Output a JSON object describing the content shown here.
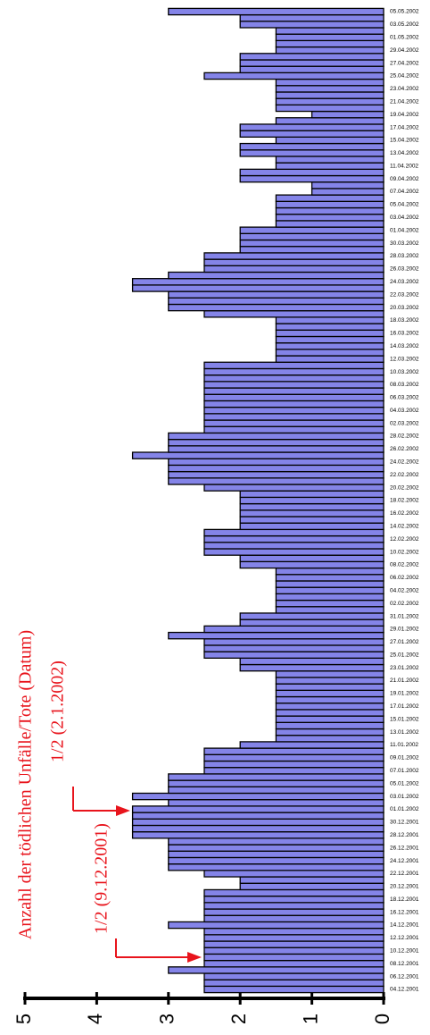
{
  "chart_data": {
    "type": "bar",
    "orientation": "horizontal",
    "title": "Anzahl der tödlichen Unfälle/Tote (Datum)",
    "annotations": [
      "1/2 (2.1.2002)",
      "1/2 (9.12.2001)"
    ],
    "color": "#8484e8",
    "xlim": [
      0,
      5
    ],
    "xticks": [
      0,
      1,
      2,
      3,
      4,
      5
    ],
    "categories": [
      "04.12.2001",
      null,
      "06.12.2001",
      null,
      "08.12.2001",
      null,
      "10.12.2001",
      null,
      "12.12.2001",
      null,
      "14.12.2001",
      null,
      "16.12.2001",
      null,
      "18.12.2001",
      null,
      "20.12.2001",
      null,
      "22.12.2001",
      null,
      "24.12.2001",
      null,
      "26.12.2001",
      null,
      "28.12.2001",
      null,
      "30.12.2001",
      null,
      "01.01.2002",
      null,
      "03.01.2002",
      null,
      "05.01.2002",
      null,
      "07.01.2002",
      null,
      "09.01.2002",
      null,
      "11.01.2002",
      null,
      "13.01.2002",
      null,
      "15.01.2002",
      null,
      "17.01.2002",
      null,
      "19.01.2002",
      null,
      "21.01.2002",
      null,
      "23.01.2002",
      null,
      "25.01.2002",
      null,
      "27.01.2002",
      null,
      "29.01.2002",
      null,
      "31.01.2002",
      null,
      "02.02.2002",
      null,
      "04.02.2002",
      null,
      "06.02.2002",
      null,
      "08.02.2002",
      null,
      "10.02.2002",
      null,
      "12.02.2002",
      null,
      "14.02.2002",
      null,
      "16.02.2002",
      null,
      "18.02.2002",
      null,
      "20.02.2002",
      null,
      "22.02.2002",
      null,
      "24.02.2002",
      null,
      "26.02.2002",
      null,
      "28.02.2002",
      null,
      "02.03.2002",
      null,
      "04.03.2002",
      null,
      "06.03.2002",
      null,
      "08.03.2002",
      null,
      "10.03.2002",
      null,
      "12.03.2002",
      null,
      "14.03.2002",
      null,
      "16.03.2002",
      null,
      "18.03.2002",
      null,
      "20.03.2002",
      null,
      "22.03.2002",
      null,
      "24.03.2002",
      null,
      "26.03.2002",
      null,
      "28.03.2002",
      null,
      "30.03.2002",
      null,
      "01.04.2002",
      null,
      "03.04.2002",
      null,
      "05.04.2002",
      null,
      "07.04.2002",
      null,
      "09.04.2002",
      null,
      "11.04.2002",
      null,
      "13.04.2002",
      null,
      "15.04.2002",
      null,
      "17.04.2002",
      null,
      "19.04.2002",
      null,
      "21.04.2002",
      null,
      "23.04.2002",
      null,
      "25.04.2002",
      null,
      "27.04.2002",
      null,
      "29.04.2002",
      null,
      "01.05.2002",
      null,
      "03.05.2002",
      null,
      "05.05.2002"
    ],
    "values": [
      2.5,
      2.5,
      2.5,
      3,
      2.5,
      2.5,
      2.5,
      2.5,
      2.5,
      2.5,
      3,
      2.5,
      2.5,
      2.5,
      2.5,
      2.5,
      2,
      2,
      2.5,
      3,
      3,
      3,
      3,
      3,
      3.5,
      3.5,
      3.5,
      3.5,
      3.5,
      3,
      3.5,
      3,
      3,
      3,
      2.5,
      2.5,
      2.5,
      2.5,
      2,
      1.5,
      1.5,
      1.5,
      1.5,
      1.5,
      1.5,
      1.5,
      1.5,
      1.5,
      1.5,
      1.5,
      2,
      2,
      2.5,
      2.5,
      2.5,
      3,
      2.5,
      2,
      2,
      1.5,
      1.5,
      1.5,
      1.5,
      1.5,
      1.5,
      1.5,
      2,
      2,
      2.5,
      2.5,
      2.5,
      2.5,
      2,
      2,
      2,
      2,
      2,
      2,
      2.5,
      3,
      3,
      3,
      3,
      3.5,
      3,
      3,
      3,
      2.5,
      2.5,
      2.5,
      2.5,
      2.5,
      2.5,
      2.5,
      2.5,
      2.5,
      2.5,
      2.5,
      1.5,
      1.5,
      1.5,
      1.5,
      1.5,
      1.5,
      1.5,
      2.5,
      3,
      3,
      3,
      3.5,
      3.5,
      3,
      2.5,
      2.5,
      2.5,
      2,
      2,
      2,
      2,
      1.5,
      1.5,
      1.5,
      1.5,
      1.5,
      1,
      1,
      2,
      2,
      1.5,
      1.5,
      2,
      2,
      1.5,
      2,
      2,
      1.5,
      1,
      1.5,
      1.5,
      1.5,
      1.5,
      1.5,
      2.5,
      2,
      2,
      2,
      1.5,
      1.5,
      1.5,
      1.5,
      2,
      2,
      3
    ]
  }
}
